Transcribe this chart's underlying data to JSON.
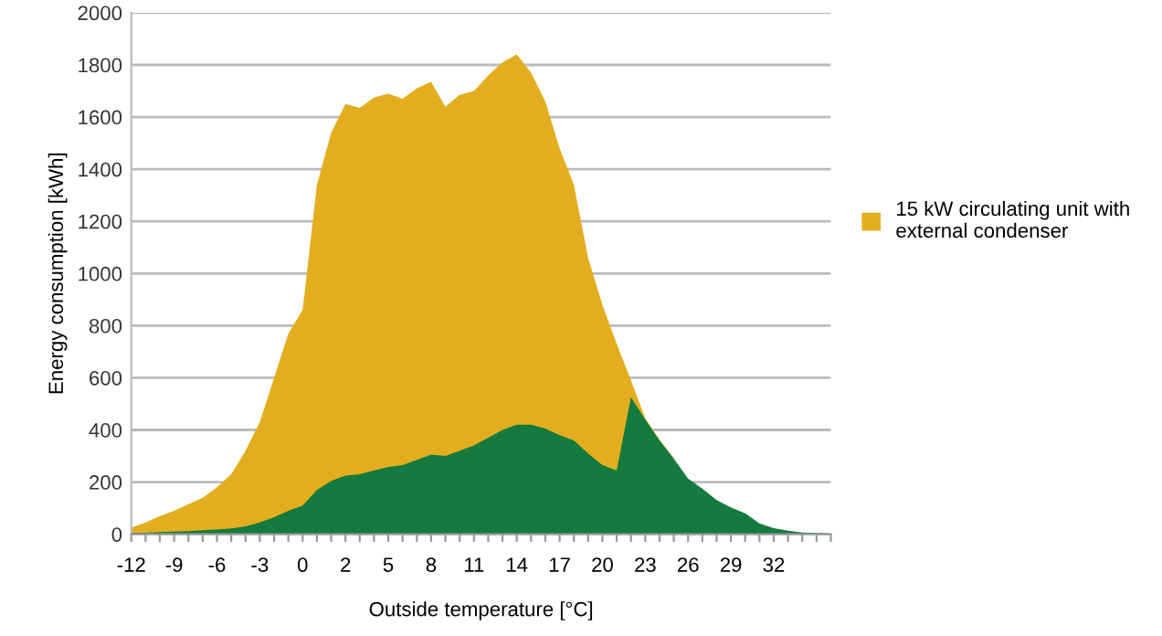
{
  "chart_data": {
    "type": "area",
    "xlabel": "Outside temperature [°C]",
    "ylabel": "Energy consumption [kWh]",
    "categories": [
      "-12",
      null,
      null,
      "-9",
      null,
      null,
      "-6",
      null,
      null,
      "-3",
      null,
      null,
      "0",
      null,
      null,
      "2",
      null,
      null,
      "5",
      null,
      null,
      "8",
      null,
      null,
      "11",
      null,
      null,
      "14",
      null,
      null,
      "17",
      null,
      null,
      "20",
      null,
      null,
      "23",
      null,
      null,
      "26",
      null,
      null,
      "29",
      null,
      null,
      "32",
      null,
      null,
      null,
      null
    ],
    "series": [
      {
        "name": "15 kW circulating unit with\nexternal condenser",
        "color": "#e2ae20",
        "values": [
          25,
          45,
          70,
          90,
          115,
          140,
          180,
          230,
          320,
          430,
          600,
          770,
          860,
          1340,
          1540,
          1650,
          1635,
          1675,
          1690,
          1670,
          1710,
          1735,
          1640,
          1685,
          1700,
          1760,
          1810,
          1840,
          1770,
          1660,
          1480,
          1340,
          1060,
          880,
          730,
          590,
          445,
          362,
          292,
          null,
          null,
          null,
          null,
          null,
          null,
          null,
          null,
          null,
          null,
          null
        ]
      },
      {
        "color": "#157a3e",
        "values": [
          5,
          6,
          8,
          10,
          12,
          15,
          18,
          22,
          30,
          45,
          65,
          90,
          110,
          170,
          205,
          225,
          230,
          245,
          258,
          265,
          285,
          305,
          300,
          320,
          340,
          370,
          400,
          420,
          420,
          405,
          380,
          360,
          310,
          265,
          245,
          525,
          440,
          360,
          290,
          213,
          175,
          131,
          103,
          80,
          42,
          23,
          14,
          7,
          5,
          2
        ]
      }
    ],
    "ylim": [
      0,
      2000
    ],
    "yticks": [
      0,
      200,
      400,
      600,
      800,
      1000,
      1200,
      1400,
      1600,
      1800,
      2000
    ],
    "grid": "y",
    "legend": "right"
  }
}
